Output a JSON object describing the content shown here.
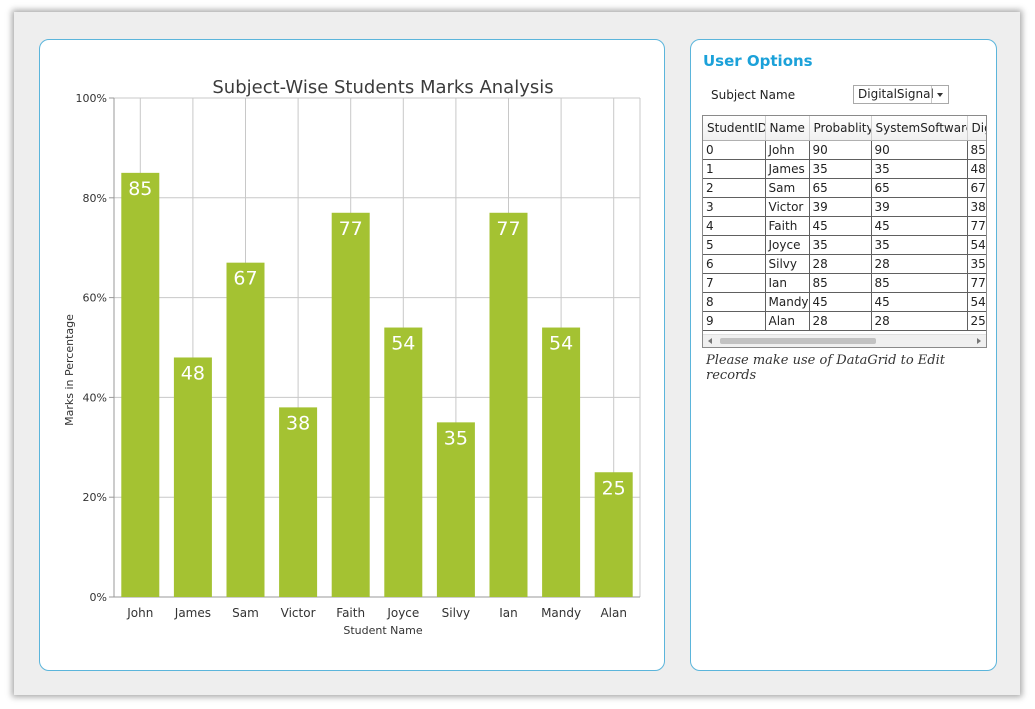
{
  "chart_data": {
    "type": "bar",
    "title": "Subject-Wise Students Marks Analysis",
    "xlabel": "Student Name",
    "ylabel": "Marks in Percentage",
    "categories": [
      "John",
      "James",
      "Sam",
      "Victor",
      "Faith",
      "Joyce",
      "Silvy",
      "Ian",
      "Mandy",
      "Alan"
    ],
    "values": [
      85,
      48,
      67,
      38,
      77,
      54,
      35,
      77,
      54,
      25
    ],
    "ylim": [
      0,
      100
    ],
    "yticks": [
      "0%",
      "20%",
      "40%",
      "60%",
      "80%",
      "100%"
    ],
    "bar_color": "#a4c232",
    "grid": true
  },
  "options": {
    "title": "User Options",
    "subject_label": "Subject Name",
    "subject_value": "DigitalSignal",
    "hint": "Please make use of DataGrid to Edit records"
  },
  "grid": {
    "columns": [
      "StudentID",
      "Name",
      "Probablity",
      "SystemSoftware",
      "Dig"
    ],
    "rows": [
      [
        "0",
        "John",
        "90",
        "90",
        "85"
      ],
      [
        "1",
        "James",
        "35",
        "35",
        "48"
      ],
      [
        "2",
        "Sam",
        "65",
        "65",
        "67"
      ],
      [
        "3",
        "Victor",
        "39",
        "39",
        "38"
      ],
      [
        "4",
        "Faith",
        "45",
        "45",
        "77"
      ],
      [
        "5",
        "Joyce",
        "35",
        "35",
        "54"
      ],
      [
        "6",
        "Silvy",
        "28",
        "28",
        "35"
      ],
      [
        "7",
        "Ian",
        "85",
        "85",
        "77"
      ],
      [
        "8",
        "Mandy",
        "45",
        "45",
        "54"
      ],
      [
        "9",
        "Alan",
        "28",
        "28",
        "25"
      ]
    ]
  }
}
